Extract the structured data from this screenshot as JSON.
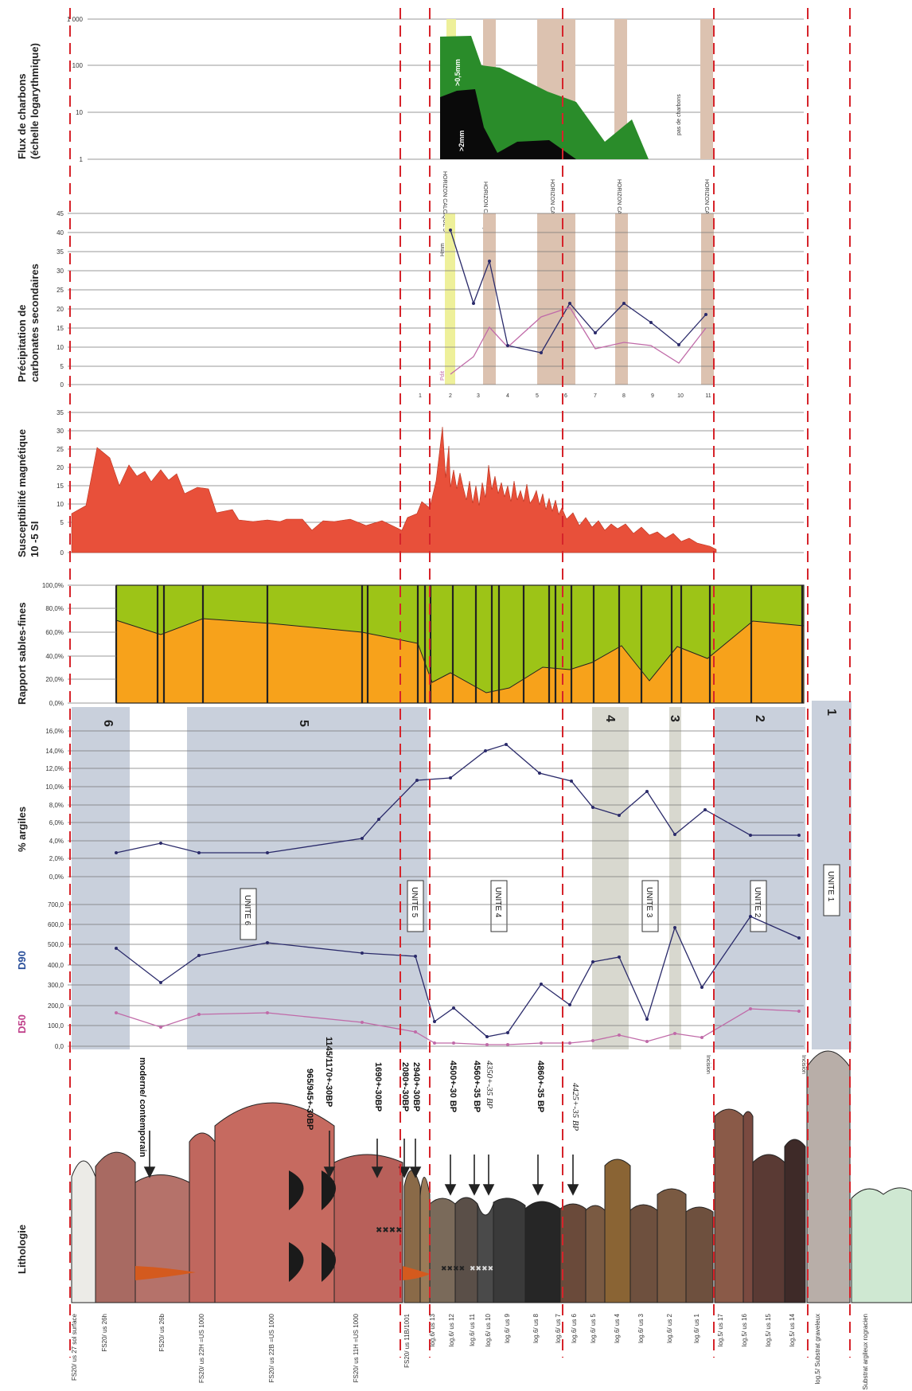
{
  "panels": {
    "charcoal": {
      "label_line1": "Flux de charbons",
      "label_line2": "(échelle logarythmique)",
      "ticks": [
        "1 000",
        "100",
        "10",
        "1"
      ],
      "series": [
        ">0,5mm",
        ">2mm"
      ],
      "note": "pas de charbons"
    },
    "carbonates": {
      "label_line1": "Précipitation de",
      "label_line2": "carbonates secondaires",
      "ticks": [
        "45",
        "40",
        "35",
        "30",
        "25",
        "20",
        "15",
        "10",
        "5",
        "0"
      ],
      "legend_top": "Hmm",
      "legend_bottom": "Pdit",
      "sample_index": [
        "1",
        "2",
        "3",
        "4",
        "5",
        "6",
        "7",
        "8",
        "9",
        "10",
        "11"
      ]
    },
    "susceptibility": {
      "label_line1": "Susceptibilité magnétique",
      "label_line2": "10 -5 SI",
      "ticks": [
        "35",
        "30",
        "25",
        "20",
        "15",
        "10",
        "5",
        "0"
      ]
    },
    "sand_ratio": {
      "label": "Rapport sables-fines",
      "ticks": [
        "100,0%",
        "80,0%",
        "60,0%",
        "40,0%",
        "20,0%",
        "0,0%"
      ]
    },
    "clay": {
      "label": "% argiles",
      "ticks": [
        "16,0%",
        "14,0%",
        "12,0%",
        "10,0%",
        "8,0%",
        "6,0%",
        "4,0%",
        "2,0%",
        "0,0%"
      ]
    },
    "grain": {
      "label_d90": "D90",
      "label_d50": "D50",
      "ticks": [
        "700,0",
        "600,0",
        "500,0",
        "400,0",
        "300,0",
        "200,0",
        "100,0",
        "0,0"
      ]
    },
    "lithology": {
      "label": "Lithologie"
    }
  },
  "horizons": [
    "HORIZON CALCIQUE 5",
    "HORIZON CALCIQUE 4",
    "HORIZON CALCIQUE 3",
    "HORIZON CALCIQUE 2",
    "HORIZON CALCIQUE 1"
  ],
  "unit_numbers": [
    "6",
    "5",
    "4",
    "3",
    "2",
    "1"
  ],
  "unit_boxes": [
    "UNITE 6",
    "UNITE 5",
    "UNITE 4",
    "UNITE 3",
    "UNITE 2",
    "UNITE 1"
  ],
  "dates": [
    "moderne/ contemporain",
    "965/945+-30BP",
    "1145/1170+-30BP",
    "1690+-30BP",
    "2080+-30BP",
    "2940+-30BP",
    "4500+-30 BP",
    "4560+-35 BP",
    "4350+-35 BP",
    "4860+-35 BP",
    "4425+-35 BP"
  ],
  "incisions": [
    "Incision",
    "Incision"
  ],
  "samples": [
    "FS20/ us 27 sol surface",
    "FS20/ us 26h",
    "FS20/ us 26b",
    "FS20/ us 22H =US 1000",
    "FS20/ us 22B =US 1000",
    "FS20/ us 11H =US 1000",
    "FS20/ us 11B/1001",
    "log.6/ us 13",
    "log.6/ us 12",
    "log.6/ us 11",
    "log.6/ us 10",
    "log.6/ us 9",
    "log.6/ us 8",
    "log.6/ us 7",
    "log.6/ us 6",
    "log.6/ us 5",
    "log.6/ us 4",
    "log.6/ us 3",
    "log.6/ us 2",
    "log.6/ us 1",
    "log.5/ us 17",
    "log.5/ us 16",
    "log.5/ us 15",
    "log.5/ us 14",
    "log.5/ Substrat graveleux",
    "Substrat argileux rogracien"
  ],
  "colors": {
    "dash": "#d6232a",
    "mag": "#e8503a",
    "sand": "#f7a21b",
    "fines": "#9dc417",
    "charcoal_fine": "#2a8c2a",
    "unitband": "#c9d0dc",
    "calc": "#dcc2b0",
    "yellow": "#eef09a",
    "d90": "#2a2a6a",
    "d50": "#c06aa8"
  }
}
